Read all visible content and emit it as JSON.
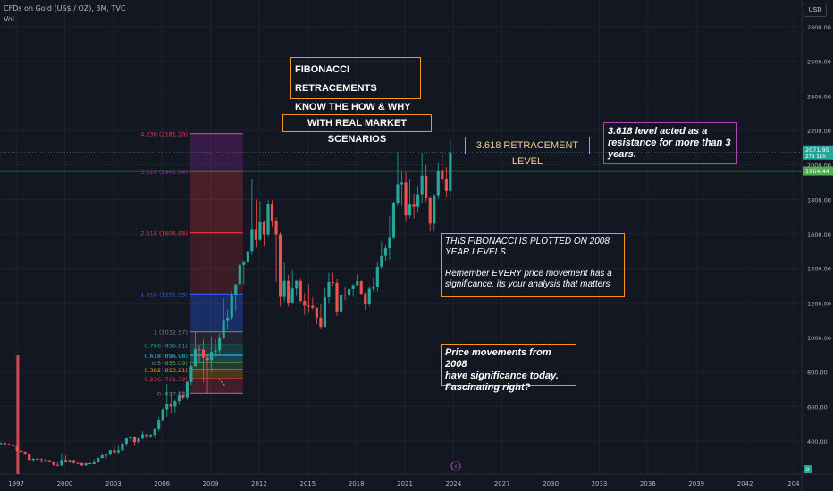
{
  "header": {
    "symbol": "CFDs on Gold (US$ / OZ), 3M, TVC",
    "indicator": "Vol",
    "currency_button": "USD"
  },
  "annotations": {
    "title_box": "FIBONACCI RETRACEMENTS\nKNOW THE HOW & WHY",
    "scenario_box": "WITH REAL MARKET SCENARIOS",
    "level_box": "3.618 RETRACEMENT LEVEL",
    "resistance_box": "3.618 level acted as a\nresistance for more than 3\nyears.",
    "plotted_box": "THIS FIBONACCI IS PLOTTED ON 2008\nYEAR LEVELS.\n\nRemember EVERY price movement has a\nsignificance, its your analysis that matters",
    "movements_box": "Price movements from 2008\nhave significance today.\nFascinating right?"
  },
  "chart_data": {
    "type": "candlestick",
    "title": "CFDs on Gold (US$ / OZ), 3M, TVC",
    "x_ticks": [
      "1997",
      "2000",
      "2003",
      "2006",
      "2009",
      "2012",
      "2015",
      "2018",
      "2021",
      "2024",
      "2027",
      "2030",
      "2033",
      "2036",
      "2039",
      "2042",
      "204"
    ],
    "y_ticks": [
      400,
      600,
      800,
      1000,
      1200,
      1400,
      1600,
      1800,
      2000,
      2200,
      2400,
      2600,
      2800
    ],
    "ylim": [
      300,
      2850
    ],
    "x_range": [
      1996.0,
      2045.5
    ],
    "price_labels": {
      "last": "2071.95",
      "countdown": "27d 11h",
      "line": "1964.44",
      "volume": "0"
    },
    "horizontal_line": {
      "value": 1964.44,
      "color": "#4caf50"
    },
    "volume_spike": {
      "year": 1997.1,
      "value_fraction": 1.0
    },
    "fib_levels": [
      {
        "ratio": "4.236",
        "price": 2181.2,
        "label": "4.236 (2181.20)",
        "color": "#e04050"
      },
      {
        "ratio": "3.618",
        "price": 1961.94,
        "label": "3.618 (1961.94)",
        "color": "#9c27b0"
      },
      {
        "ratio": "2.618",
        "price": 1606.88,
        "label": "2.618 (1606.88)",
        "color": "#f23645"
      },
      {
        "ratio": "1.618",
        "price": 1251.93,
        "label": "1.618 (1251.93)",
        "color": "#2962ff"
      },
      {
        "ratio": "1",
        "price": 1032.57,
        "label": "1 (1032.57)",
        "color": "#787b86"
      },
      {
        "ratio": "0.786",
        "price": 956.61,
        "label": "0.786 (956.61)",
        "color": "#26a69a"
      },
      {
        "ratio": "0.618",
        "price": 896.98,
        "label": "0.618 (896.98)",
        "color": "#26c6da"
      },
      {
        "ratio": "0.5",
        "price": 855.09,
        "label": "0.5 (855.09)",
        "color": "#4caf50"
      },
      {
        "ratio": "0.382",
        "price": 813.21,
        "label": "0.382 (813.21)",
        "color": "#ff9800"
      },
      {
        "ratio": "0.236",
        "price": 761.39,
        "label": "0.236 (761.39)",
        "color": "#f23645"
      },
      {
        "ratio": "0",
        "price": 677.62,
        "label": "0 (677.62)",
        "color": "#787b86"
      }
    ],
    "fib_x_range": [
      2007.75,
      2011.0
    ],
    "candles": [
      [
        1996.0,
        385,
        392,
        380,
        388
      ],
      [
        1996.25,
        388,
        392,
        378,
        382
      ],
      [
        1996.5,
        382,
        386,
        374,
        379
      ],
      [
        1996.75,
        379,
        382,
        366,
        369
      ],
      [
        1997.0,
        369,
        372,
        338,
        345
      ],
      [
        1997.25,
        345,
        348,
        334,
        338
      ],
      [
        1997.5,
        338,
        342,
        318,
        325
      ],
      [
        1997.75,
        325,
        330,
        283,
        290
      ],
      [
        1998.0,
        290,
        302,
        284,
        297
      ],
      [
        1998.25,
        297,
        302,
        289,
        294
      ],
      [
        1998.5,
        294,
        300,
        272,
        289
      ],
      [
        1998.75,
        289,
        296,
        285,
        288
      ],
      [
        1999.0,
        288,
        290,
        278,
        280
      ],
      [
        1999.25,
        280,
        284,
        256,
        262
      ],
      [
        1999.5,
        262,
        275,
        252,
        258
      ],
      [
        1999.75,
        258,
        330,
        255,
        290
      ],
      [
        2000.0,
        290,
        316,
        278,
        278
      ],
      [
        2000.25,
        278,
        294,
        272,
        288
      ],
      [
        2000.5,
        288,
        292,
        268,
        273
      ],
      [
        2000.75,
        273,
        276,
        264,
        272
      ],
      [
        2001.0,
        272,
        272,
        255,
        258
      ],
      [
        2001.25,
        258,
        272,
        256,
        271
      ],
      [
        2001.5,
        271,
        276,
        264,
        266
      ],
      [
        2001.75,
        266,
        294,
        265,
        278
      ],
      [
        2002.0,
        278,
        304,
        277,
        301
      ],
      [
        2002.25,
        301,
        330,
        300,
        317
      ],
      [
        2002.5,
        317,
        327,
        302,
        323
      ],
      [
        2002.75,
        323,
        350,
        314,
        347
      ],
      [
        2003.0,
        347,
        382,
        320,
        335
      ],
      [
        2003.25,
        335,
        372,
        330,
        346
      ],
      [
        2003.5,
        346,
        392,
        342,
        385
      ],
      [
        2003.75,
        385,
        418,
        370,
        415
      ],
      [
        2004.0,
        415,
        430,
        400,
        425
      ],
      [
        2004.25,
        425,
        428,
        372,
        394
      ],
      [
        2004.5,
        394,
        420,
        386,
        415
      ],
      [
        2004.75,
        415,
        456,
        410,
        438
      ],
      [
        2005.0,
        438,
        446,
        410,
        428
      ],
      [
        2005.25,
        428,
        440,
        415,
        436
      ],
      [
        2005.5,
        436,
        475,
        418,
        473
      ],
      [
        2005.75,
        473,
        540,
        456,
        518
      ],
      [
        2006.0,
        518,
        590,
        512,
        584
      ],
      [
        2006.25,
        584,
        730,
        540,
        613
      ],
      [
        2006.5,
        613,
        680,
        560,
        599
      ],
      [
        2006.75,
        599,
        640,
        560,
        632
      ],
      [
        2007.0,
        632,
        690,
        610,
        662
      ],
      [
        2007.25,
        662,
        690,
        640,
        650
      ],
      [
        2007.5,
        650,
        745,
        641,
        742
      ],
      [
        2007.75,
        742,
        845,
        725,
        833
      ],
      [
        2008.0,
        833,
        1032,
        830,
        933
      ],
      [
        2008.25,
        933,
        960,
        850,
        930
      ],
      [
        2008.5,
        930,
        988,
        740,
        884
      ],
      [
        2008.75,
        884,
        903,
        680,
        869
      ],
      [
        2009.0,
        869,
        1006,
        800,
        916
      ],
      [
        2009.25,
        916,
        990,
        890,
        925
      ],
      [
        2009.5,
        925,
        1024,
        905,
        995
      ],
      [
        2009.75,
        995,
        1227,
        990,
        1096
      ],
      [
        2010.0,
        1096,
        1162,
        1045,
        1115
      ],
      [
        2010.25,
        1115,
        1265,
        1100,
        1244
      ],
      [
        2010.5,
        1244,
        1300,
        1157,
        1308
      ],
      [
        2010.75,
        1308,
        1430,
        1300,
        1420
      ],
      [
        2011.0,
        1420,
        1447,
        1308,
        1438
      ],
      [
        2011.25,
        1438,
        1577,
        1420,
        1500
      ],
      [
        2011.5,
        1500,
        1920,
        1478,
        1624
      ],
      [
        2011.75,
        1624,
        1800,
        1520,
        1565
      ],
      [
        2012.0,
        1565,
        1790,
        1560,
        1668
      ],
      [
        2012.25,
        1668,
        1676,
        1527,
        1597
      ],
      [
        2012.5,
        1597,
        1796,
        1585,
        1772
      ],
      [
        2012.75,
        1772,
        1795,
        1640,
        1675
      ],
      [
        2013.0,
        1675,
        1696,
        1321,
        1597
      ],
      [
        2013.25,
        1597,
        1610,
        1180,
        1235
      ],
      [
        2013.5,
        1235,
        1434,
        1208,
        1327
      ],
      [
        2013.75,
        1327,
        1362,
        1180,
        1202
      ],
      [
        2014.0,
        1202,
        1392,
        1200,
        1283
      ],
      [
        2014.25,
        1283,
        1332,
        1240,
        1327
      ],
      [
        2014.5,
        1327,
        1345,
        1206,
        1211
      ],
      [
        2014.75,
        1211,
        1255,
        1131,
        1184
      ],
      [
        2015.0,
        1184,
        1308,
        1142,
        1183
      ],
      [
        2015.25,
        1183,
        1232,
        1162,
        1172
      ],
      [
        2015.5,
        1172,
        1172,
        1077,
        1115
      ],
      [
        2015.75,
        1115,
        1191,
        1046,
        1061
      ],
      [
        2016.0,
        1061,
        1283,
        1061,
        1233
      ],
      [
        2016.25,
        1233,
        1375,
        1200,
        1321
      ],
      [
        2016.5,
        1321,
        1375,
        1300,
        1316
      ],
      [
        2016.75,
        1316,
        1337,
        1123,
        1151
      ],
      [
        2017.0,
        1151,
        1262,
        1151,
        1247
      ],
      [
        2017.25,
        1247,
        1296,
        1215,
        1242
      ],
      [
        2017.5,
        1242,
        1357,
        1205,
        1280
      ],
      [
        2017.75,
        1280,
        1310,
        1236,
        1303
      ],
      [
        2018.0,
        1303,
        1366,
        1300,
        1325
      ],
      [
        2018.25,
        1325,
        1330,
        1250,
        1253
      ],
      [
        2018.5,
        1253,
        1265,
        1160,
        1192
      ],
      [
        2018.75,
        1192,
        1298,
        1180,
        1282
      ],
      [
        2019.0,
        1282,
        1347,
        1266,
        1292
      ],
      [
        2019.25,
        1292,
        1438,
        1266,
        1409
      ],
      [
        2019.5,
        1409,
        1557,
        1400,
        1472
      ],
      [
        2019.75,
        1472,
        1535,
        1445,
        1517
      ],
      [
        2020.0,
        1517,
        1704,
        1451,
        1577
      ],
      [
        2020.25,
        1577,
        1789,
        1570,
        1781
      ],
      [
        2020.5,
        1781,
        2075,
        1763,
        1887
      ],
      [
        2020.75,
        1887,
        1965,
        1764,
        1898
      ],
      [
        2021.0,
        1898,
        1959,
        1677,
        1708
      ],
      [
        2021.25,
        1708,
        1916,
        1690,
        1770
      ],
      [
        2021.5,
        1770,
        1834,
        1690,
        1757
      ],
      [
        2021.75,
        1757,
        1877,
        1722,
        1829
      ],
      [
        2022.0,
        1829,
        2070,
        1780,
        1937
      ],
      [
        2022.25,
        1937,
        1998,
        1787,
        1807
      ],
      [
        2022.5,
        1807,
        1814,
        1615,
        1660
      ],
      [
        2022.75,
        1660,
        1833,
        1617,
        1824
      ],
      [
        2023.0,
        1824,
        2010,
        1804,
        1969
      ],
      [
        2023.25,
        1969,
        2080,
        1893,
        1919
      ],
      [
        2023.5,
        1919,
        1987,
        1810,
        1849
      ],
      [
        2023.75,
        1849,
        2150,
        1810,
        2072
      ]
    ]
  }
}
